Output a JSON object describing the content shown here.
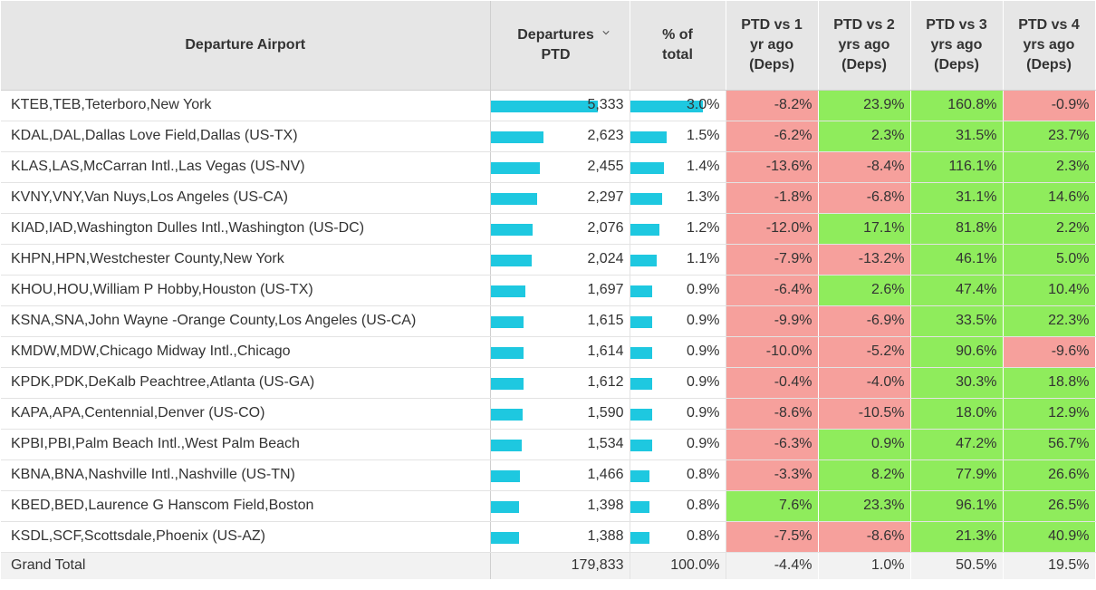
{
  "headers": {
    "airport": "Departure Airport",
    "departures": "Departures PTD",
    "share": "% of total",
    "vs1": "PTD vs 1 yr ago (Deps)",
    "vs2": "PTD vs 2 yrs ago (Deps)",
    "vs3": "PTD vs 3 yrs ago (Deps)",
    "vs4": "PTD vs 4 yrs ago (Deps)"
  },
  "icons": {
    "sort": "chevron-down-icon"
  },
  "colors": {
    "bar": "#1ec8e0",
    "positive": "#8fec5c",
    "negative": "#f6a09c",
    "header_bg": "#e6e6e6"
  },
  "rows": [
    {
      "airport": "KTEB,TEB,Teterboro,New York",
      "departures": "5,333",
      "share": "3.0%",
      "vs1": "-8.2%",
      "vs2": "23.9%",
      "vs3": "160.8%",
      "vs4": "-0.9%"
    },
    {
      "airport": "KDAL,DAL,Dallas Love Field,Dallas (US-TX)",
      "departures": "2,623",
      "share": "1.5%",
      "vs1": "-6.2%",
      "vs2": "2.3%",
      "vs3": "31.5%",
      "vs4": "23.7%"
    },
    {
      "airport": "KLAS,LAS,McCarran Intl.,Las Vegas (US-NV)",
      "departures": "2,455",
      "share": "1.4%",
      "vs1": "-13.6%",
      "vs2": "-8.4%",
      "vs3": "116.1%",
      "vs4": "2.3%"
    },
    {
      "airport": "KVNY,VNY,Van Nuys,Los Angeles (US-CA)",
      "departures": "2,297",
      "share": "1.3%",
      "vs1": "-1.8%",
      "vs2": "-6.8%",
      "vs3": "31.1%",
      "vs4": "14.6%"
    },
    {
      "airport": "KIAD,IAD,Washington Dulles Intl.,Washington (US-DC)",
      "departures": "2,076",
      "share": "1.2%",
      "vs1": "-12.0%",
      "vs2": "17.1%",
      "vs3": "81.8%",
      "vs4": "2.2%"
    },
    {
      "airport": "KHPN,HPN,Westchester County,New York",
      "departures": "2,024",
      "share": "1.1%",
      "vs1": "-7.9%",
      "vs2": "-13.2%",
      "vs3": "46.1%",
      "vs4": "5.0%"
    },
    {
      "airport": "KHOU,HOU,William P Hobby,Houston (US-TX)",
      "departures": "1,697",
      "share": "0.9%",
      "vs1": "-6.4%",
      "vs2": "2.6%",
      "vs3": "47.4%",
      "vs4": "10.4%"
    },
    {
      "airport": "KSNA,SNA,John Wayne -Orange County,Los Angeles (US-CA)",
      "departures": "1,615",
      "share": "0.9%",
      "vs1": "-9.9%",
      "vs2": "-6.9%",
      "vs3": "33.5%",
      "vs4": "22.3%"
    },
    {
      "airport": "KMDW,MDW,Chicago Midway Intl.,Chicago",
      "departures": "1,614",
      "share": "0.9%",
      "vs1": "-10.0%",
      "vs2": "-5.2%",
      "vs3": "90.6%",
      "vs4": "-9.6%"
    },
    {
      "airport": "KPDK,PDK,DeKalb Peachtree,Atlanta (US-GA)",
      "departures": "1,612",
      "share": "0.9%",
      "vs1": "-0.4%",
      "vs2": "-4.0%",
      "vs3": "30.3%",
      "vs4": "18.8%"
    },
    {
      "airport": "KAPA,APA,Centennial,Denver (US-CO)",
      "departures": "1,590",
      "share": "0.9%",
      "vs1": "-8.6%",
      "vs2": "-10.5%",
      "vs3": "18.0%",
      "vs4": "12.9%"
    },
    {
      "airport": "KPBI,PBI,Palm Beach Intl.,West Palm Beach",
      "departures": "1,534",
      "share": "0.9%",
      "vs1": "-6.3%",
      "vs2": "0.9%",
      "vs3": "47.2%",
      "vs4": "56.7%"
    },
    {
      "airport": "KBNA,BNA,Nashville Intl.,Nashville (US-TN)",
      "departures": "1,466",
      "share": "0.8%",
      "vs1": "-3.3%",
      "vs2": "8.2%",
      "vs3": "77.9%",
      "vs4": "26.6%"
    },
    {
      "airport": "KBED,BED,Laurence G Hanscom Field,Boston",
      "departures": "1,398",
      "share": "0.8%",
      "vs1": "7.6%",
      "vs2": "23.3%",
      "vs3": "96.1%",
      "vs4": "26.5%"
    },
    {
      "airport": "KSDL,SCF,Scottsdale,Phoenix (US-AZ)",
      "departures": "1,388",
      "share": "0.8%",
      "vs1": "-7.5%",
      "vs2": "-8.6%",
      "vs3": "21.3%",
      "vs4": "40.9%"
    }
  ],
  "total": {
    "airport": "Grand Total",
    "departures": "179,833",
    "share": "100.0%",
    "vs1": "-4.4%",
    "vs2": "1.0%",
    "vs3": "50.5%",
    "vs4": "19.5%"
  }
}
